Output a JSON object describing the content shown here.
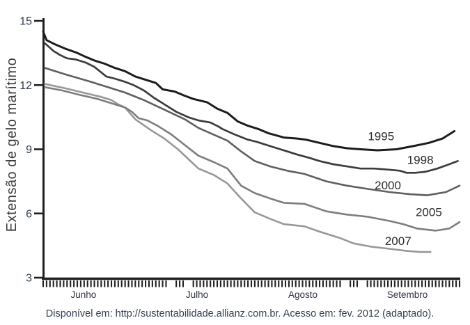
{
  "figure": {
    "y_axis_title": "Extensão de gelo marítimo",
    "caption": "Disponível em: http://sustentabilidade.allianz.com.br. Acesso em: fev. 2012 (adaptado)."
  },
  "chart_data": {
    "type": "line",
    "title": "",
    "ylabel": "Extensão de gelo marítimo",
    "xlabel": "",
    "ylim": [
      3,
      15
    ],
    "y_ticks": [
      15,
      12,
      9,
      6,
      3
    ],
    "x_day_range": [
      0,
      122
    ],
    "grid": false,
    "legend_position": "inline-labels",
    "months": [
      {
        "label": "Junho",
        "day": 11.8
      },
      {
        "label": "Julho",
        "day": 45.1
      },
      {
        "label": "Agosto",
        "day": 76.1
      },
      {
        "label": "Setembro",
        "day": 106.7
      }
    ],
    "axis_tick_skip_days": [
      37,
      38,
      42,
      43,
      88,
      89,
      93,
      94
    ],
    "colors": {
      "axis": "#1f1f1f",
      "tick_label": "#333c4d",
      "month_label": "#2e3440",
      "year_label": "#2b2b2b"
    },
    "series": [
      {
        "name": "2007",
        "color": "#989898",
        "width": 2.6,
        "label_day": 104,
        "label_value": 4.72,
        "d": [
          0.5,
          6.5,
          13,
          17,
          20,
          22,
          24,
          27,
          31.5,
          35.5,
          39.5,
          43.5,
          45.5,
          50,
          54,
          58,
          62,
          66.5,
          70.5,
          76.5,
          81,
          84,
          87,
          91,
          96,
          101.5,
          106.5,
          110.5,
          113.5
        ],
        "v": [
          12.05,
          11.85,
          11.6,
          11.45,
          11.3,
          11.1,
          10.95,
          10.4,
          9.9,
          9.5,
          9.0,
          8.4,
          8.1,
          7.8,
          7.4,
          6.7,
          6.05,
          5.75,
          5.5,
          5.4,
          5.15,
          5.0,
          4.85,
          4.6,
          4.45,
          4.35,
          4.25,
          4.2,
          4.2
        ]
      },
      {
        "name": "2005",
        "color": "#7d7d7d",
        "width": 2.6,
        "label_day": 113,
        "label_value": 6.08,
        "d": [
          0.5,
          5.5,
          10.5,
          16,
          20,
          24,
          26,
          28,
          30.5,
          33.5,
          37.5,
          41.5,
          45.5,
          50,
          54,
          58,
          62,
          66.5,
          70.5,
          76.5,
          83,
          89,
          95,
          101.5,
          105.5,
          109.5,
          115,
          119,
          122
        ],
        "v": [
          11.9,
          11.75,
          11.55,
          11.35,
          11.15,
          10.95,
          10.75,
          10.45,
          10.35,
          10.1,
          9.7,
          9.2,
          8.7,
          8.4,
          8.1,
          7.3,
          6.95,
          6.7,
          6.5,
          6.45,
          6.1,
          5.95,
          5.85,
          5.65,
          5.5,
          5.3,
          5.2,
          5.3,
          5.6
        ]
      },
      {
        "name": "2000",
        "color": "#5f5f5f",
        "width": 2.6,
        "label_day": 101,
        "label_value": 7.32,
        "d": [
          0.5,
          6.5,
          13,
          19,
          24,
          29.5,
          35.5,
          41.5,
          45.5,
          54,
          58,
          62,
          66.5,
          71.5,
          76.5,
          83,
          89,
          95,
          101.5,
          107.5,
          112.5,
          118,
          122
        ],
        "v": [
          12.8,
          12.5,
          12.2,
          11.9,
          11.65,
          11.3,
          10.85,
          10.4,
          10.0,
          9.4,
          8.9,
          8.45,
          8.2,
          8.0,
          7.85,
          7.5,
          7.3,
          7.15,
          7.0,
          6.9,
          6.85,
          7.0,
          7.3
        ]
      },
      {
        "name": "1998",
        "color": "#3c3c3c",
        "width": 2.7,
        "label_day": 110.5,
        "label_value": 8.52,
        "d": [
          0.5,
          3,
          5,
          7,
          9.5,
          12.5,
          15,
          18.5,
          21,
          24,
          26.5,
          29.5,
          32.5,
          35.5,
          39,
          42.5,
          45.5,
          49,
          51.5,
          52.5,
          56,
          60,
          62.5,
          65.5,
          68.5,
          71.5,
          74.5,
          78,
          81,
          85,
          89,
          93,
          97,
          101,
          104.5,
          106.5,
          109,
          112,
          115.5,
          119,
          121.5
        ],
        "v": [
          13.95,
          13.6,
          13.4,
          13.25,
          13.2,
          13.05,
          12.85,
          12.4,
          12.3,
          12.15,
          12.0,
          11.75,
          11.4,
          11.1,
          10.75,
          10.5,
          10.35,
          10.25,
          10.05,
          9.95,
          9.7,
          9.45,
          9.35,
          9.2,
          9.05,
          8.9,
          8.75,
          8.6,
          8.45,
          8.3,
          8.2,
          8.1,
          8.1,
          8.05,
          8.0,
          7.9,
          7.9,
          7.95,
          8.1,
          8.3,
          8.45
        ]
      },
      {
        "name": "1995",
        "color": "#1c1c1c",
        "width": 3,
        "label_day": 99,
        "label_value": 9.62,
        "d": [
          0,
          1,
          3.5,
          6.5,
          10,
          12,
          15,
          18,
          21,
          24,
          27,
          30,
          33,
          35,
          38.5,
          41.5,
          44,
          48,
          51,
          54,
          57,
          60,
          63,
          66,
          70.5,
          74.5,
          77,
          81,
          85,
          89,
          93,
          98,
          103.5,
          108.5,
          113,
          117,
          120.5
        ],
        "v": [
          14.5,
          14.1,
          13.9,
          13.7,
          13.5,
          13.35,
          13.15,
          13.0,
          12.8,
          12.65,
          12.4,
          12.25,
          12.1,
          11.8,
          11.7,
          11.5,
          11.35,
          11.2,
          10.9,
          10.7,
          10.3,
          10.1,
          9.95,
          9.75,
          9.55,
          9.5,
          9.45,
          9.3,
          9.15,
          9.05,
          9.0,
          8.95,
          9.0,
          9.15,
          9.3,
          9.5,
          9.85
        ]
      }
    ]
  }
}
